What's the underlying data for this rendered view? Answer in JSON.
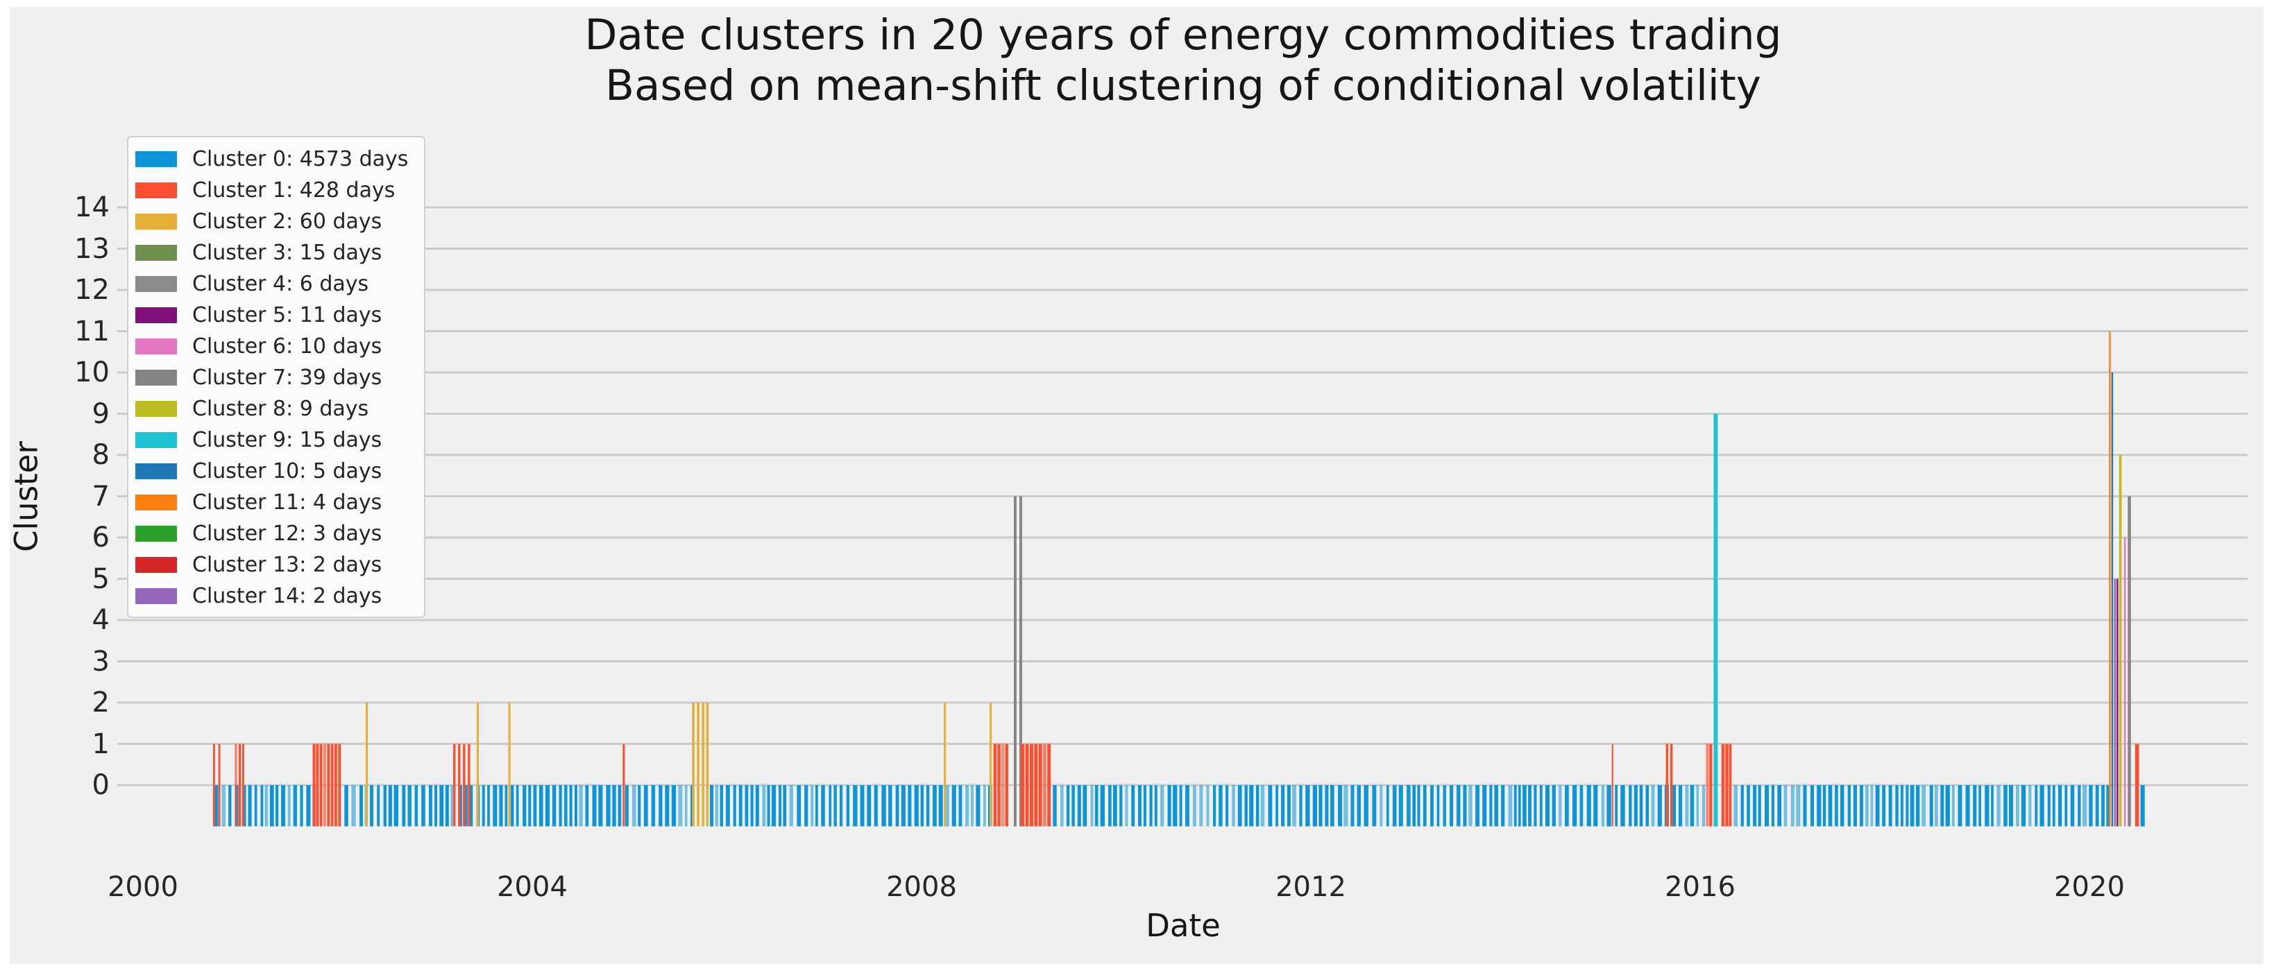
{
  "figure": {
    "page_background": "#ffffff",
    "plot_background": "#f0f0f0",
    "grid_color": "#cbcbcb",
    "text_color": "#161616",
    "tick_color": "#262626",
    "legend_background": "#fbfbfb",
    "legend_border": "#cfcfcf"
  },
  "chart_data": {
    "type": "bar",
    "title": "Date clusters in 20 years of energy commodities trading",
    "subtitle": "Based on mean-shift clustering of conditional volatility",
    "xlabel": "Date",
    "ylabel": "Cluster",
    "xlim": [
      1999.74,
      2021.62
    ],
    "ylim": [
      -1.5,
      17.2
    ],
    "xticks": [
      2000,
      2004,
      2008,
      2012,
      2016,
      2020
    ],
    "yticks": [
      0,
      1,
      2,
      3,
      4,
      5,
      6,
      7,
      8,
      9,
      10,
      11,
      12,
      13,
      14
    ],
    "grid": "horizontal",
    "legend_position": "upper-left",
    "bar_base": -1,
    "clusters": [
      {
        "id": 0,
        "label": "Cluster 0: 4573 days",
        "days": 4573,
        "color": "#0f95d7"
      },
      {
        "id": 1,
        "label": "Cluster 1: 428 days",
        "days": 428,
        "color": "#fc4f30"
      },
      {
        "id": 2,
        "label": "Cluster 2: 60 days",
        "days": 60,
        "color": "#e5ae38"
      },
      {
        "id": 3,
        "label": "Cluster 3: 15 days",
        "days": 15,
        "color": "#6d904f"
      },
      {
        "id": 4,
        "label": "Cluster 4: 6 days",
        "days": 6,
        "color": "#8b8b8b"
      },
      {
        "id": 5,
        "label": "Cluster 5: 11 days",
        "days": 11,
        "color": "#810f7c"
      },
      {
        "id": 6,
        "label": "Cluster 6: 10 days",
        "days": 10,
        "color": "#e377c2"
      },
      {
        "id": 7,
        "label": "Cluster 7: 39 days",
        "days": 39,
        "color": "#848484"
      },
      {
        "id": 8,
        "label": "Cluster 8: 9 days",
        "days": 9,
        "color": "#bcbd22"
      },
      {
        "id": 9,
        "label": "Cluster 9: 15 days",
        "days": 15,
        "color": "#1fc3d4"
      },
      {
        "id": 10,
        "label": "Cluster 10: 5 days",
        "days": 5,
        "color": "#1f77b4"
      },
      {
        "id": 11,
        "label": "Cluster 11: 4 days",
        "days": 4,
        "color": "#ff7f0e"
      },
      {
        "id": 12,
        "label": "Cluster 12: 3 days",
        "days": 3,
        "color": "#2ca02c"
      },
      {
        "id": 13,
        "label": "Cluster 13: 2 days",
        "days": 2,
        "color": "#d62728"
      },
      {
        "id": 14,
        "label": "Cluster 14: 2 days",
        "days": 2,
        "color": "#9467bd"
      }
    ],
    "cluster0_band": {
      "cluster": 0,
      "segments": [
        [
          2000.735,
          2001.745
        ],
        [
          2002.07,
          2005.635
        ],
        [
          2005.825,
          2008.735
        ],
        [
          2009.35,
          2016.04
        ],
        [
          2016.345,
          2020.195
        ],
        [
          2020.525,
          2020.578
        ]
      ]
    },
    "spikes": [
      {
        "year": 2000.73,
        "cluster": 1,
        "value": 1,
        "w": 0.02
      },
      {
        "year": 2000.785,
        "cluster": 1,
        "value": 1,
        "w": 0.02
      },
      {
        "year": 2000.955,
        "cluster": 1,
        "value": 1,
        "w": 0.024,
        "a": 0.7
      },
      {
        "year": 2000.995,
        "cluster": 1,
        "value": 1,
        "w": 0.024
      },
      {
        "year": 2001.03,
        "cluster": 1,
        "value": 1,
        "w": 0.02
      },
      {
        "year": 2001.758,
        "cluster": 1,
        "value": 1,
        "w": 0.028
      },
      {
        "year": 2001.792,
        "cluster": 1,
        "value": 1,
        "w": 0.028
      },
      {
        "year": 2001.83,
        "cluster": 1,
        "value": 1,
        "w": 0.028
      },
      {
        "year": 2001.868,
        "cluster": 1,
        "value": 1,
        "w": 0.028,
        "a": 0.65
      },
      {
        "year": 2001.906,
        "cluster": 1,
        "value": 1,
        "w": 0.028
      },
      {
        "year": 2001.944,
        "cluster": 1,
        "value": 1,
        "w": 0.028
      },
      {
        "year": 2001.982,
        "cluster": 1,
        "value": 1,
        "w": 0.028
      },
      {
        "year": 2002.02,
        "cluster": 1,
        "value": 1,
        "w": 0.028
      },
      {
        "year": 2002.3,
        "cluster": 2,
        "value": 2,
        "w": 0.022
      },
      {
        "year": 2003.2,
        "cluster": 1,
        "value": 1,
        "w": 0.024
      },
      {
        "year": 2003.25,
        "cluster": 1,
        "value": 1,
        "w": 0.024
      },
      {
        "year": 2003.3,
        "cluster": 1,
        "value": 1,
        "w": 0.024
      },
      {
        "year": 2003.35,
        "cluster": 1,
        "value": 1,
        "w": 0.024
      },
      {
        "year": 2003.44,
        "cluster": 2,
        "value": 2,
        "w": 0.022
      },
      {
        "year": 2003.765,
        "cluster": 2,
        "value": 2,
        "w": 0.022
      },
      {
        "year": 2004.94,
        "cluster": 1,
        "value": 1,
        "w": 0.022
      },
      {
        "year": 2005.655,
        "cluster": 2,
        "value": 2,
        "w": 0.026
      },
      {
        "year": 2005.705,
        "cluster": 2,
        "value": 2,
        "w": 0.026
      },
      {
        "year": 2005.755,
        "cluster": 2,
        "value": 2,
        "w": 0.026
      },
      {
        "year": 2005.8,
        "cluster": 2,
        "value": 2,
        "w": 0.026
      },
      {
        "year": 2008.24,
        "cluster": 2,
        "value": 2,
        "w": 0.022
      },
      {
        "year": 2008.71,
        "cluster": 2,
        "value": 2,
        "w": 0.022
      },
      {
        "year": 2008.755,
        "cluster": 1,
        "value": 1,
        "w": 0.032
      },
      {
        "year": 2008.795,
        "cluster": 1,
        "value": 1,
        "w": 0.032
      },
      {
        "year": 2008.835,
        "cluster": 1,
        "value": 1,
        "w": 0.032,
        "a": 0.6
      },
      {
        "year": 2008.875,
        "cluster": 1,
        "value": 1,
        "w": 0.032
      },
      {
        "year": 2008.962,
        "cluster": 7,
        "value": 7,
        "w": 0.028
      },
      {
        "year": 2009.019,
        "cluster": 7,
        "value": 7,
        "w": 0.028
      },
      {
        "year": 2009.04,
        "cluster": 1,
        "value": 1,
        "w": 0.036
      },
      {
        "year": 2009.085,
        "cluster": 1,
        "value": 1,
        "w": 0.036
      },
      {
        "year": 2009.13,
        "cluster": 1,
        "value": 1,
        "w": 0.036
      },
      {
        "year": 2009.175,
        "cluster": 1,
        "value": 1,
        "w": 0.036
      },
      {
        "year": 2009.22,
        "cluster": 1,
        "value": 1,
        "w": 0.036
      },
      {
        "year": 2009.265,
        "cluster": 1,
        "value": 1,
        "w": 0.036,
        "a": 0.7
      },
      {
        "year": 2009.31,
        "cluster": 1,
        "value": 1,
        "w": 0.036
      },
      {
        "year": 2015.1,
        "cluster": 1,
        "value": 1,
        "w": 0.015
      },
      {
        "year": 2015.66,
        "cluster": 1,
        "value": 1,
        "w": 0.025
      },
      {
        "year": 2015.705,
        "cluster": 1,
        "value": 1,
        "w": 0.025
      },
      {
        "year": 2016.075,
        "cluster": 1,
        "value": 1,
        "w": 0.03,
        "a": 0.65
      },
      {
        "year": 2016.11,
        "cluster": 1,
        "value": 1,
        "w": 0.03
      },
      {
        "year": 2016.16,
        "cluster": 9,
        "value": 9,
        "w": 0.042
      },
      {
        "year": 2016.235,
        "cluster": 1,
        "value": 1,
        "w": 0.032
      },
      {
        "year": 2016.275,
        "cluster": 1,
        "value": 1,
        "w": 0.032
      },
      {
        "year": 2016.31,
        "cluster": 1,
        "value": 1,
        "w": 0.026
      },
      {
        "year": 2020.21,
        "cluster": 11,
        "value": 11,
        "w": 0.018
      },
      {
        "year": 2020.235,
        "cluster": 10,
        "value": 10,
        "w": 0.018
      },
      {
        "year": 2020.262,
        "cluster": 14,
        "value": 5,
        "w": 0.018
      },
      {
        "year": 2020.288,
        "cluster": 5,
        "value": 5,
        "w": 0.018
      },
      {
        "year": 2020.318,
        "cluster": 8,
        "value": 8,
        "w": 0.026
      },
      {
        "year": 2020.365,
        "cluster": 6,
        "value": 6,
        "w": 0.018
      },
      {
        "year": 2020.41,
        "cluster": 7,
        "value": 7,
        "w": 0.032
      },
      {
        "year": 2020.49,
        "cluster": 1,
        "value": 1,
        "w": 0.04
      }
    ]
  }
}
